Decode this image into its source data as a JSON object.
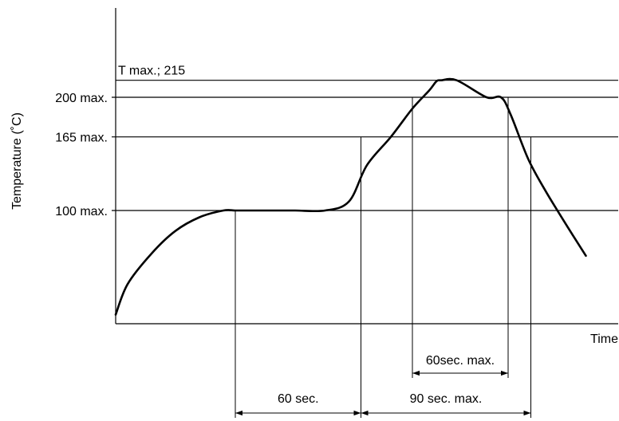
{
  "chart_data": {
    "type": "line",
    "title": "",
    "xlabel": "Time",
    "ylabel": "Temperature (˚C)",
    "ylim": [
      0,
      260
    ],
    "grid": false,
    "reference_lines": [
      {
        "label": "T max.; 215",
        "value": 215
      },
      {
        "label": "200 max.",
        "value": 200
      },
      {
        "label": "165 max.",
        "value": 165
      },
      {
        "label": "100 max.",
        "value": 100
      }
    ],
    "series": [
      {
        "x": [
          0,
          10,
          30,
          50,
          70,
          90,
          100,
          110,
          130,
          150,
          175,
          195,
          210,
          230,
          248,
          262,
          268,
          272,
          285,
          310,
          322,
          330,
          345,
          360,
          378,
          393
        ],
        "y": [
          8,
          35,
          62,
          82,
          94,
          100,
          100,
          100,
          100,
          100,
          100,
          108,
          140,
          165,
          190,
          206,
          214,
          215,
          215,
          200,
          200,
          185,
          145,
          116,
          85,
          60
        ]
      }
    ],
    "intervals": [
      {
        "label": "60 sec.",
        "start": 100,
        "end": 205
      },
      {
        "label": "90 sec. max.",
        "start": 205,
        "end": 347
      },
      {
        "label": "60sec. max.",
        "start": 248,
        "end": 328
      }
    ]
  }
}
